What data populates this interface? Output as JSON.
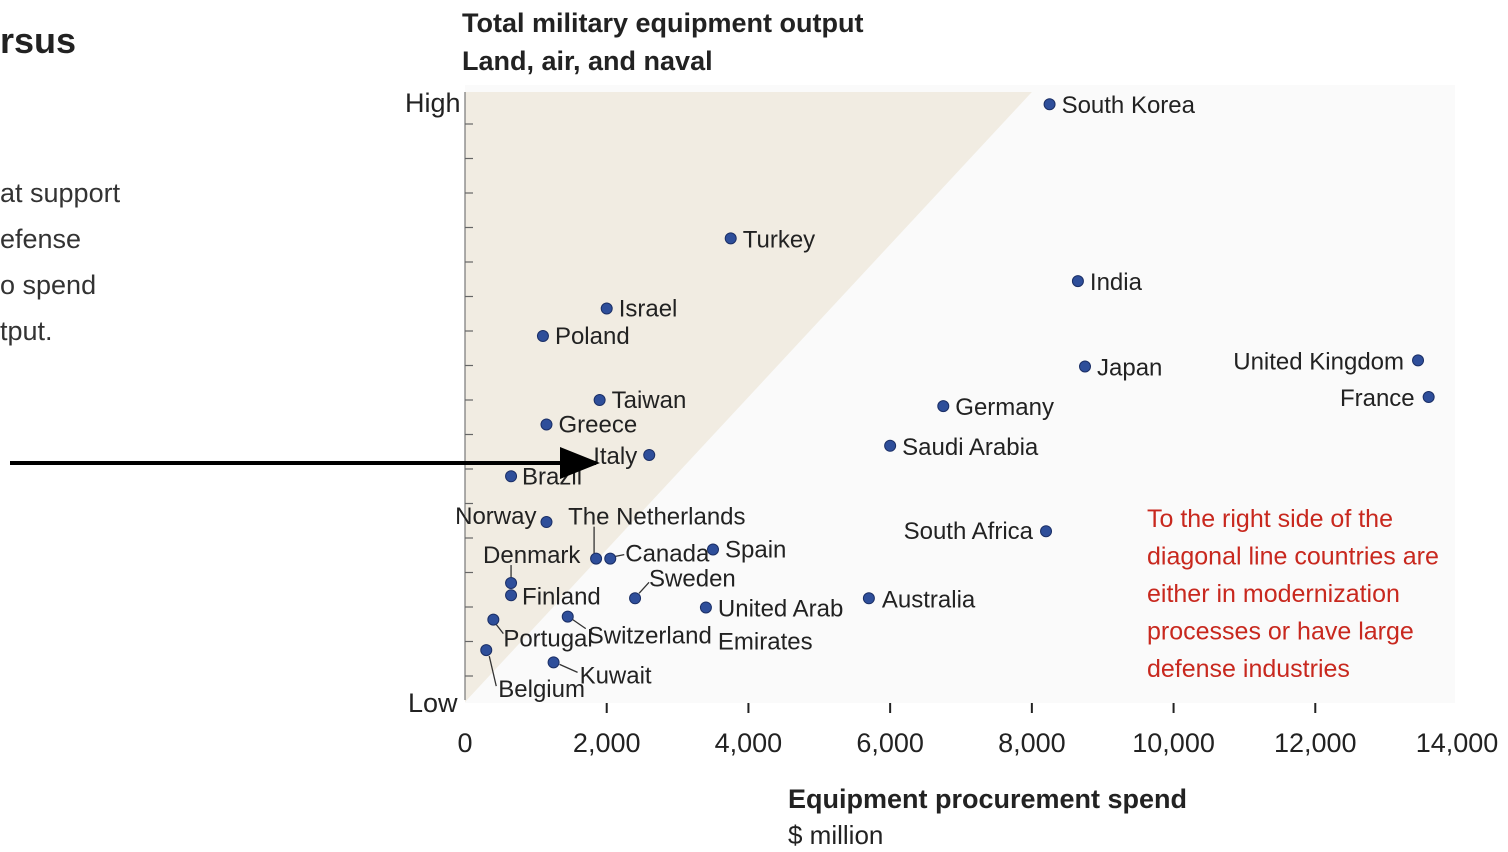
{
  "left_text": {
    "title": "rsus",
    "lines": [
      "at support",
      "efense",
      "o spend",
      "tput."
    ]
  },
  "chart_data": {
    "type": "scatter",
    "title": "Total military equipment output",
    "subtitle": "Land, air, and naval",
    "y_high_label": "High",
    "y_low_label": "Low",
    "xlabel": "Equipment procurement spend",
    "xlabel_unit": "$ million",
    "xlim": [
      0,
      14000
    ],
    "ylim": [
      0,
      100
    ],
    "x_ticks": [
      0,
      2000,
      4000,
      6000,
      8000,
      10000,
      12000,
      14000
    ],
    "x_tick_labels": [
      "0",
      "2,000",
      "4,000",
      "6,000",
      "8,000",
      "10,000",
      "12,000",
      "14,000"
    ],
    "point_color": "#2e4e9a",
    "shade_color": "#f1ece2",
    "annotation_color": "#c8281e",
    "points": [
      {
        "name": "South Korea",
        "x": 8250,
        "y": 98
      },
      {
        "name": "Turkey",
        "x": 3750,
        "y": 76
      },
      {
        "name": "India",
        "x": 8650,
        "y": 69
      },
      {
        "name": "Israel",
        "x": 2000,
        "y": 64.5
      },
      {
        "name": "Poland",
        "x": 1100,
        "y": 60
      },
      {
        "name": "United Kingdom",
        "x": 13450,
        "y": 56
      },
      {
        "name": "Japan",
        "x": 8750,
        "y": 55
      },
      {
        "name": "France",
        "x": 13600,
        "y": 50
      },
      {
        "name": "Taiwan",
        "x": 1900,
        "y": 49.5
      },
      {
        "name": "Germany",
        "x": 6750,
        "y": 48.5
      },
      {
        "name": "Greece",
        "x": 1150,
        "y": 45.5
      },
      {
        "name": "Saudi Arabia",
        "x": 6000,
        "y": 42
      },
      {
        "name": "Italy",
        "x": 2600,
        "y": 40.5
      },
      {
        "name": "Brazil",
        "x": 650,
        "y": 37
      },
      {
        "name": "Norway",
        "x": 1150,
        "y": 29.5
      },
      {
        "name": "South Africa",
        "x": 8200,
        "y": 28
      },
      {
        "name": "The Netherlands",
        "x": 1850,
        "y": 23.5
      },
      {
        "name": "Canada",
        "x": 2050,
        "y": 23.5
      },
      {
        "name": "Spain",
        "x": 3500,
        "y": 25
      },
      {
        "name": "Denmark",
        "x": 650,
        "y": 19.5
      },
      {
        "name": "Finland",
        "x": 650,
        "y": 17.5
      },
      {
        "name": "Sweden",
        "x": 2400,
        "y": 17
      },
      {
        "name": "United Arab Emirates",
        "x": 3400,
        "y": 15.5
      },
      {
        "name": "Australia",
        "x": 5700,
        "y": 17
      },
      {
        "name": "Switzerland",
        "x": 1450,
        "y": 14
      },
      {
        "name": "Portugal",
        "x": 400,
        "y": 13.5
      },
      {
        "name": "Belgium",
        "x": 300,
        "y": 8.5
      },
      {
        "name": "Kuwait",
        "x": 1250,
        "y": 6.5
      }
    ],
    "diagonal": {
      "x0": 0,
      "y0": 0,
      "x1": 8000,
      "y1": 100
    },
    "annotation": [
      "To the right side of the",
      "diagonal line countries are",
      "either in modernization",
      "processes or have large",
      "defense industries"
    ],
    "arrow_target": "Italy"
  }
}
